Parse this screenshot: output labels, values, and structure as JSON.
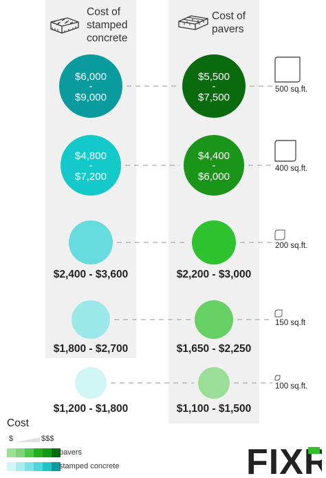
{
  "headers": {
    "concrete": "Cost of stamped concrete",
    "pavers": "Cost of pavers"
  },
  "chart_data": {
    "type": "bubble",
    "rows": [
      {
        "area": "500 sq.ft.",
        "concrete": "$6,000 - $9,000",
        "concrete_low": 6000,
        "concrete_high": 9000,
        "pavers": "$5,500 - $7,500",
        "pavers_low": 5500,
        "pavers_high": 7500,
        "label_inside": true
      },
      {
        "area": "400 sq.ft.",
        "concrete": "$4,800 - $7,200",
        "concrete_low": 4800,
        "concrete_high": 7200,
        "pavers": "$4,400 - $6,000",
        "pavers_low": 4400,
        "pavers_high": 6000,
        "label_inside": true
      },
      {
        "area": "200 sq.ft.",
        "concrete": "$2,400 - $3,600",
        "concrete_low": 2400,
        "concrete_high": 3600,
        "pavers": "$2,200 - $3,000",
        "pavers_low": 2200,
        "pavers_high": 3000,
        "label_inside": false
      },
      {
        "area": "150 sq.ft",
        "concrete": "$1,800 - $2,700",
        "concrete_low": 1800,
        "concrete_high": 2700,
        "pavers": "$1,650 - $2,250",
        "pavers_low": 1650,
        "pavers_high": 2250,
        "label_inside": false
      },
      {
        "area": "100 sq.ft.",
        "concrete": "$1,200 - $1,800",
        "concrete_low": 1200,
        "concrete_high": 1800,
        "pavers": "$1,100 - $1,500",
        "pavers_low": 1100,
        "pavers_high": 1500,
        "label_inside": false
      }
    ],
    "colors": {
      "concrete": [
        "#0a9b9e",
        "#14c9c9",
        "#66dcdf",
        "#9be8ea",
        "#d1f4f4"
      ],
      "pavers": [
        "#0a6b0e",
        "#1a9419",
        "#2fc22f",
        "#66d064",
        "#9bde98"
      ]
    }
  },
  "legend": {
    "title": "Cost",
    "low": "$",
    "high": "$$$",
    "pavers_label": "pavers",
    "concrete_label": "stamped concrete",
    "pavers_swatches": [
      "#9bde98",
      "#7fd47c",
      "#4cc94a",
      "#1fb21d",
      "#119a14",
      "#0a6b0e"
    ],
    "concrete_swatches": [
      "#d1f4f4",
      "#a8ecee",
      "#7de3e6",
      "#4fd6d9",
      "#1fc5c8",
      "#0a9b9e"
    ]
  },
  "logo": {
    "text": "FIXR"
  }
}
